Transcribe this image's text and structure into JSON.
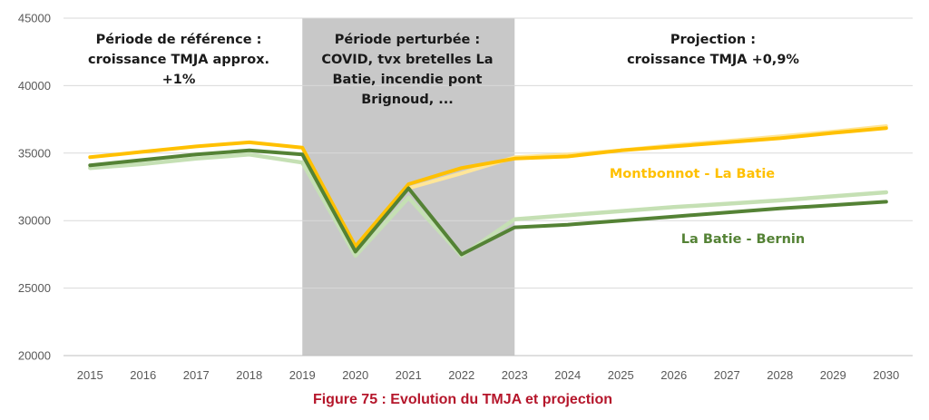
{
  "chart_data": {
    "type": "line",
    "x": [
      2015,
      2016,
      2017,
      2018,
      2019,
      2020,
      2021,
      2022,
      2023,
      2024,
      2025,
      2026,
      2027,
      2028,
      2029,
      2030
    ],
    "ylim": [
      20000,
      45000
    ],
    "yticks": [
      "20000",
      "25000",
      "30000",
      "35000",
      "40000",
      "45000"
    ],
    "xticks": [
      "2015",
      "2016",
      "2017",
      "2018",
      "2019",
      "2020",
      "2021",
      "2022",
      "2023",
      "2024",
      "2025",
      "2026",
      "2027",
      "2028",
      "2029",
      "2030"
    ],
    "grid": true,
    "shaded_period": {
      "from": 2019,
      "to": 2023,
      "color": "#c8c8c8"
    },
    "period_labels": [
      {
        "lines": [
          "Période de référence :",
          "croissance TMJA approx.",
          "+1%"
        ]
      },
      {
        "lines": [
          "Période perturbée :",
          "COVID, tvx bretelles La",
          "Batie, incendie pont",
          "Brignoud, ..."
        ]
      },
      {
        "lines": [
          "Projection :",
          "croissance TMJA +0,9%"
        ]
      }
    ],
    "series": [
      {
        "name": "Montbonnot - La Batie",
        "color": "#ffc000",
        "values": [
          34700,
          35100,
          35500,
          35800,
          35400,
          28100,
          32700,
          33900,
          34600,
          34750,
          35200,
          35500,
          35800,
          36100,
          36500,
          36850
        ]
      },
      {
        "name": "",
        "color": "#ffe699",
        "values": [
          null,
          null,
          null,
          null,
          null,
          null,
          32400,
          33500,
          34700,
          34900,
          35200,
          35600,
          35900,
          36250,
          36600,
          37000
        ]
      },
      {
        "name": "La Batie - Bernin",
        "color": "#548235",
        "values": [
          34100,
          34500,
          34900,
          35200,
          34900,
          27700,
          32400,
          27500,
          29500,
          29700,
          30000,
          30300,
          30600,
          30900,
          31150,
          31400
        ]
      },
      {
        "name": "",
        "color": "#c5e0b4",
        "values": [
          33900,
          34200,
          34600,
          34900,
          34300,
          27400,
          31700,
          27400,
          30100,
          30400,
          30700,
          31000,
          31250,
          31500,
          31800,
          32100
        ]
      }
    ],
    "caption": "Figure 75 : Evolution du TMJA et projection"
  }
}
